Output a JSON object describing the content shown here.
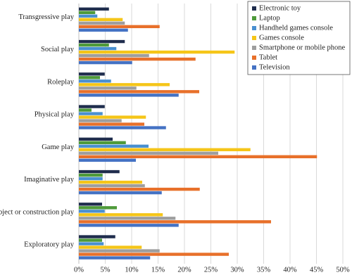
{
  "chart_data": {
    "type": "hbar",
    "categories": [
      "Transgressive play",
      "Social play",
      "Roleplay",
      "Physical play",
      "Game play",
      "Imaginative play",
      "Object or construction play",
      "Exploratory play"
    ],
    "series": [
      {
        "name": "Electronic toy",
        "color": "#1f2d4d",
        "values": [
          5.7,
          8.7,
          4.9,
          4.9,
          6.4,
          7.7,
          4.4,
          6.9
        ]
      },
      {
        "name": "Laptop",
        "color": "#4e9a3a",
        "values": [
          3.1,
          5.7,
          4.0,
          2.4,
          8.9,
          4.5,
          7.2,
          4.4
        ]
      },
      {
        "name": "Handheld games console",
        "color": "#4a90d0",
        "values": [
          3.5,
          7.1,
          6.1,
          4.5,
          13.2,
          4.5,
          4.9,
          4.7
        ]
      },
      {
        "name": "Games console",
        "color": "#f5c518",
        "values": [
          8.3,
          29.5,
          17.2,
          12.7,
          32.5,
          12.0,
          15.9,
          11.9
        ]
      },
      {
        "name": "Smartphone or mobile phone",
        "color": "#9e9e9e",
        "values": [
          8.7,
          13.3,
          10.9,
          8.1,
          26.4,
          12.5,
          18.3,
          15.3
        ]
      },
      {
        "name": "Tablet",
        "color": "#e8702a",
        "values": [
          15.3,
          22.1,
          22.8,
          12.4,
          45.1,
          22.9,
          36.4,
          28.4
        ]
      },
      {
        "name": "Television",
        "color": "#4472c4",
        "values": [
          9.3,
          10.1,
          18.9,
          16.5,
          10.8,
          15.7,
          18.9,
          13.5
        ]
      }
    ],
    "xlim": [
      0,
      50
    ],
    "xticks": [
      {
        "value": 0,
        "label": "0%"
      },
      {
        "value": 5,
        "label": "5%"
      },
      {
        "value": 10,
        "label": "10%"
      },
      {
        "value": 15,
        "label": "15%"
      },
      {
        "value": 20,
        "label": "20%"
      },
      {
        "value": 25,
        "label": "25%"
      },
      {
        "value": 30,
        "label": "30%"
      },
      {
        "value": 35,
        "label": "35%"
      },
      {
        "value": 40,
        "label": "40%"
      },
      {
        "value": 45,
        "label": "45%"
      },
      {
        "value": 50,
        "label": "50%"
      }
    ],
    "grid": true,
    "legend": "top-right"
  }
}
